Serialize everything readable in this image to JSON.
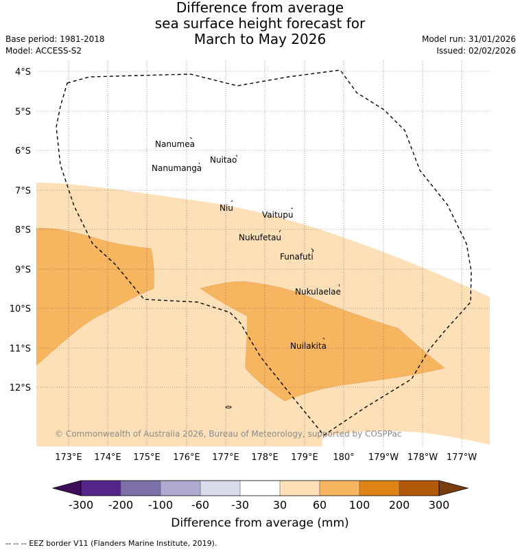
{
  "title": {
    "line1": "Difference from average",
    "line2": "sea surface height forecast for",
    "line3": "March to May 2026"
  },
  "meta": {
    "base_period": "Base period: 1981-2018",
    "model": "Model: ACCESS-S2",
    "model_run": "Model run: 31/01/2026",
    "issued": "Issued: 02/02/2026"
  },
  "map": {
    "lat_labels": [
      "4°S",
      "5°S",
      "6°S",
      "7°S",
      "8°S",
      "9°S",
      "10°S",
      "11°S",
      "12°S"
    ],
    "lon_labels": [
      "173°E",
      "174°E",
      "175°E",
      "176°E",
      "177°E",
      "178°E",
      "179°E",
      "180°",
      "179°W",
      "178°W",
      "177°W"
    ],
    "places": [
      "Nanumea",
      "Nuitao",
      "Nanumanga",
      "Niu",
      "Vaitupu",
      "Nukufetau",
      "Funafuti",
      "Nukulaelae",
      "Nuilakita"
    ],
    "copyright": "© Commonwealth of Australia 2026, Bureau of Meteorology, supported by COSPPac",
    "colors": {
      "band_30_60": "#fde0b8",
      "band_60_100": "#f8b560",
      "eez_line": "#000000"
    }
  },
  "colorbar": {
    "ticks": [
      "-300",
      "-200",
      "-100",
      "-60",
      "-30",
      "30",
      "60",
      "100",
      "200",
      "300"
    ],
    "colors": [
      "#3d0e59",
      "#54258a",
      "#7d6fa8",
      "#aeaad0",
      "#d9daea",
      "#ffffff",
      "#fde0b8",
      "#f8b560",
      "#e08316",
      "#b2580a",
      "#7b3d0b"
    ],
    "label": "Difference from average (mm)"
  },
  "footnote": "--  --  -- EEZ border V11 (Flanders Marine Institute, 2019)."
}
